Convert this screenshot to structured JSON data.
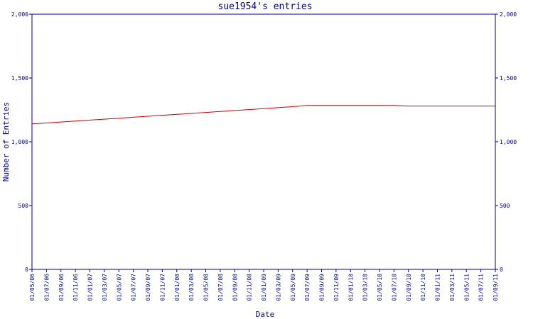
{
  "chart_data": {
    "type": "line",
    "title": "sue1954's entries",
    "xlabel": "Date",
    "ylabel": "Number of Entries",
    "ylim": [
      0,
      2000
    ],
    "y_ticks": [
      0,
      500,
      1000,
      1500,
      2000
    ],
    "y_tick_labels": [
      "0",
      "500",
      "1,000",
      "1,500",
      "2,000"
    ],
    "y_axis_right": true,
    "grid": false,
    "x_tick_labels": [
      "01/05/06",
      "01/07/06",
      "01/09/06",
      "01/11/06",
      "01/01/07",
      "01/03/07",
      "01/05/07",
      "01/07/07",
      "01/09/07",
      "01/11/07",
      "01/01/08",
      "01/03/08",
      "01/05/08",
      "01/07/08",
      "01/09/08",
      "01/11/08",
      "01/01/09",
      "01/03/09",
      "01/05/09",
      "01/07/09",
      "01/09/09",
      "01/11/09",
      "01/01/10",
      "01/03/10",
      "01/05/10",
      "01/07/10",
      "01/09/10",
      "01/11/10",
      "01/01/11",
      "01/03/11",
      "01/05/11",
      "01/07/11",
      "01/09/11"
    ],
    "series": [
      {
        "color": "#cc0000",
        "x": [
          "01/05/06",
          "01/09/06",
          "01/01/07",
          "01/05/07",
          "01/09/07",
          "01/01/08",
          "01/05/08",
          "01/09/08",
          "01/01/09",
          "01/05/09",
          "01/07/09",
          "01/09/09",
          "01/01/10",
          "01/05/10",
          "01/07/10",
          "01/09/10",
          "01/01/11",
          "01/05/11",
          "01/09/11"
        ],
        "values": [
          1140,
          1155,
          1170,
          1185,
          1200,
          1215,
          1230,
          1245,
          1260,
          1275,
          1285,
          1285,
          1285,
          1285,
          1285,
          1280,
          1280,
          1280,
          1280
        ]
      }
    ],
    "colors": {
      "axis": "#000080",
      "line": "#cc0000"
    }
  }
}
